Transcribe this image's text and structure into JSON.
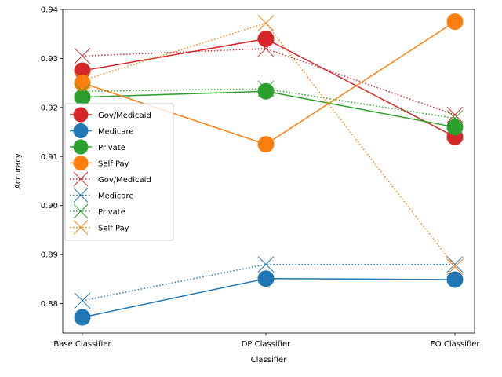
{
  "chart_data": {
    "type": "line",
    "categories": [
      "Base Classifier",
      "DP Classifier",
      "EO Classifier"
    ],
    "xlabel": "Classifier",
    "ylabel": "Accuracy",
    "ylim": [
      0.874,
      0.94
    ],
    "yticks": [
      0.88,
      0.89,
      0.9,
      0.91,
      0.92,
      0.93,
      0.94
    ],
    "ytick_labels": [
      "0.88",
      "0.89",
      "0.90",
      "0.91",
      "0.92",
      "0.93",
      "0.94"
    ],
    "legend_position": "center-left",
    "series": [
      {
        "name": "Gov/Medicaid",
        "color": "#d62728",
        "style": "solid",
        "marker": "circle",
        "values": [
          0.9275,
          0.934,
          0.914
        ]
      },
      {
        "name": "Medicare",
        "color": "#1f77b4",
        "style": "solid",
        "marker": "circle",
        "values": [
          0.8772,
          0.8851,
          0.8849
        ]
      },
      {
        "name": "Private",
        "color": "#2ca02c",
        "style": "solid",
        "marker": "circle",
        "values": [
          0.9221,
          0.9233,
          0.916
        ]
      },
      {
        "name": "Self Pay",
        "color": "#ff7f0e",
        "style": "solid",
        "marker": "circle",
        "values": [
          0.925,
          0.9125,
          0.9375
        ]
      },
      {
        "name": "Gov/Medicaid",
        "color": "#d62728",
        "style": "dotted",
        "marker": "x",
        "values": [
          0.9305,
          0.932,
          0.9185
        ]
      },
      {
        "name": "Medicare",
        "color": "#1f77b4",
        "style": "dotted",
        "marker": "x",
        "values": [
          0.8806,
          0.888,
          0.888
        ]
      },
      {
        "name": "Private",
        "color": "#2ca02c",
        "style": "dotted",
        "marker": "x",
        "values": [
          0.9233,
          0.9238,
          0.9178
        ]
      },
      {
        "name": "Self Pay",
        "color": "#ff7f0e",
        "style": "dotted",
        "marker": "x",
        "values": [
          0.9255,
          0.9372,
          0.8875
        ]
      }
    ]
  }
}
